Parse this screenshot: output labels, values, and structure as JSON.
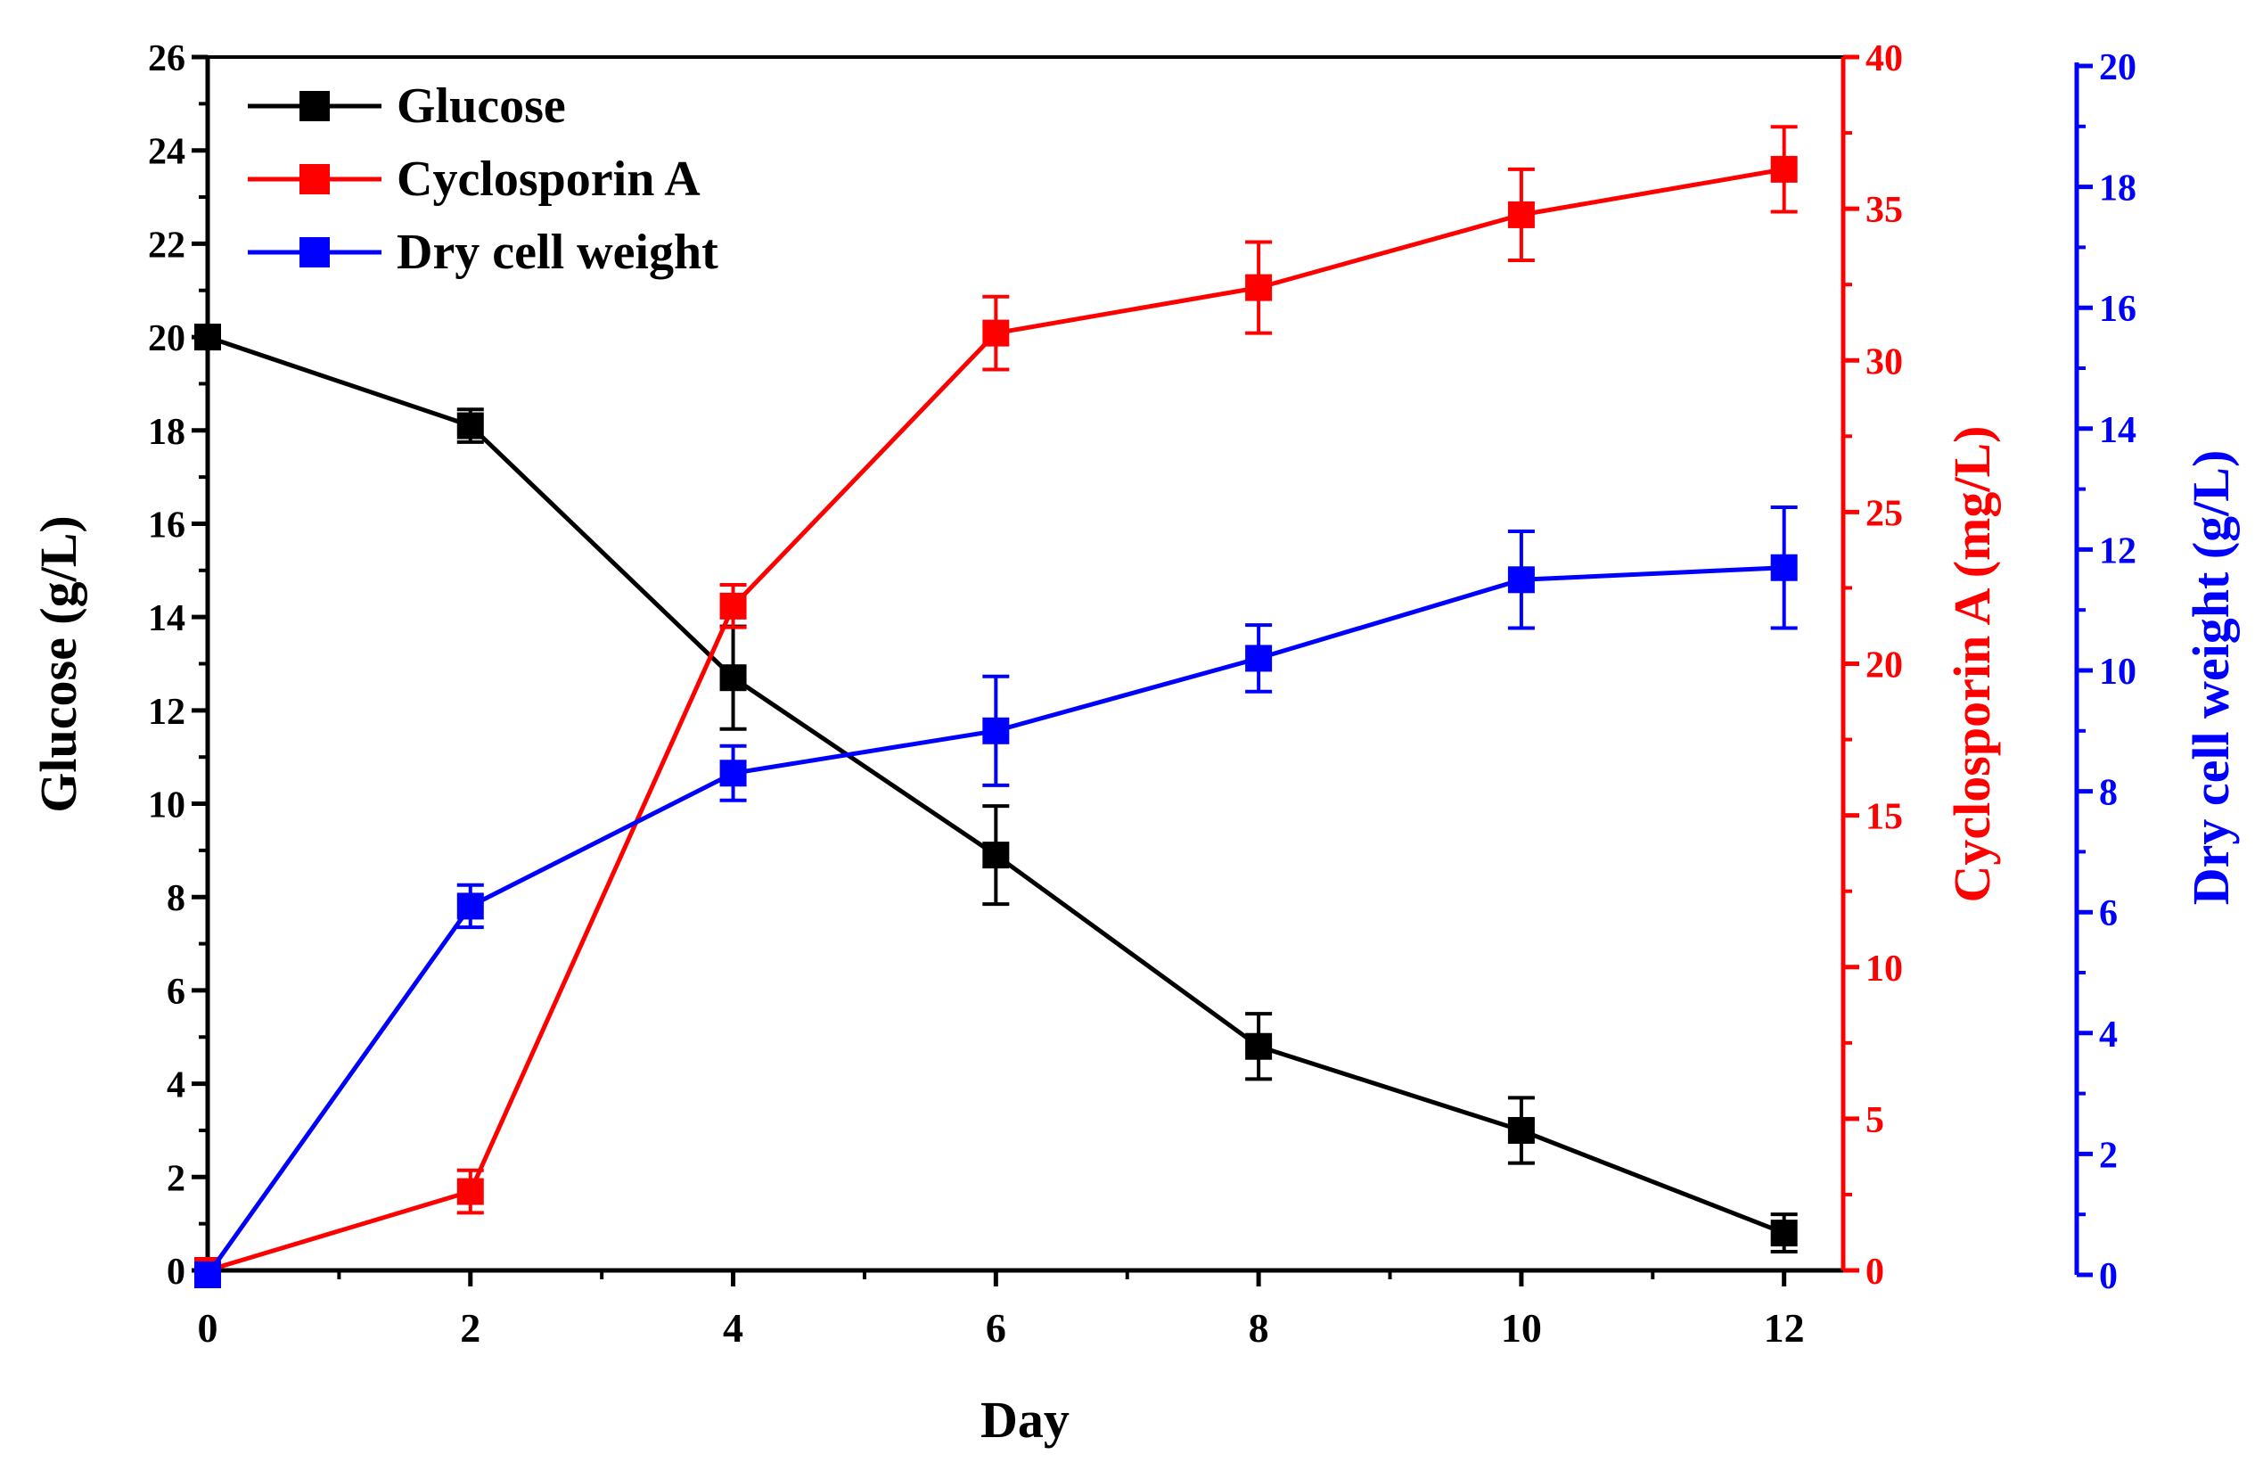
{
  "chart_data": {
    "type": "line",
    "xlabel": "Day",
    "x_ticks": [
      "0",
      "2",
      "4",
      "6",
      "8",
      "10",
      "12"
    ],
    "xlim": [
      0,
      12.45
    ],
    "axes": [
      {
        "id": "left",
        "label": "Glucose (g/L)",
        "color": "#000000",
        "ylim": [
          0,
          26
        ],
        "ticks": [
          "0",
          "2",
          "4",
          "6",
          "8",
          "10",
          "12",
          "14",
          "16",
          "18",
          "20",
          "22",
          "24",
          "26"
        ],
        "tick_step": 2
      },
      {
        "id": "right1",
        "label": "Cyclosporin A (mg/L)",
        "color": "#ff0000",
        "ylim": [
          0,
          40
        ],
        "ticks": [
          "0",
          "5",
          "10",
          "15",
          "20",
          "25",
          "30",
          "35",
          "40"
        ],
        "tick_step": 5
      },
      {
        "id": "right2",
        "label": "Dry cell weight (g/L)",
        "color": "#0000ff",
        "ylim": [
          0,
          20
        ],
        "ticks": [
          "0",
          "2",
          "4",
          "6",
          "8",
          "10",
          "12",
          "14",
          "16",
          "18",
          "20"
        ],
        "tick_step": 2
      }
    ],
    "series": [
      {
        "name": "Glucose",
        "axis": "left",
        "color": "#000000",
        "x": [
          0,
          2,
          4,
          6,
          8,
          10,
          12
        ],
        "y": [
          20.0,
          18.1,
          12.7,
          8.9,
          4.8,
          3.0,
          0.8
        ],
        "err": [
          0.0,
          0.35,
          1.1,
          1.05,
          0.7,
          0.7,
          0.4
        ]
      },
      {
        "name": "Cyclosporin A",
        "axis": "right1",
        "color": "#ff0000",
        "x": [
          0,
          2,
          4,
          6,
          8,
          10,
          12
        ],
        "y": [
          0.0,
          2.6,
          21.9,
          30.9,
          32.4,
          34.8,
          36.3
        ],
        "err": [
          0.0,
          0.7,
          0.7,
          1.2,
          1.5,
          1.5,
          1.4
        ]
      },
      {
        "name": "Dry cell weight",
        "axis": "right2",
        "color": "#0000ff",
        "x": [
          0,
          2,
          4,
          6,
          8,
          10,
          12
        ],
        "y": [
          0.0,
          6.1,
          8.3,
          9.0,
          10.2,
          11.5,
          11.7
        ],
        "err": [
          0.0,
          0.35,
          0.45,
          0.9,
          0.55,
          0.8,
          1.0
        ]
      }
    ],
    "legend": {
      "position": "top-left",
      "entries": [
        "Glucose",
        "Cyclosporin A",
        "Dry cell weight"
      ]
    }
  }
}
